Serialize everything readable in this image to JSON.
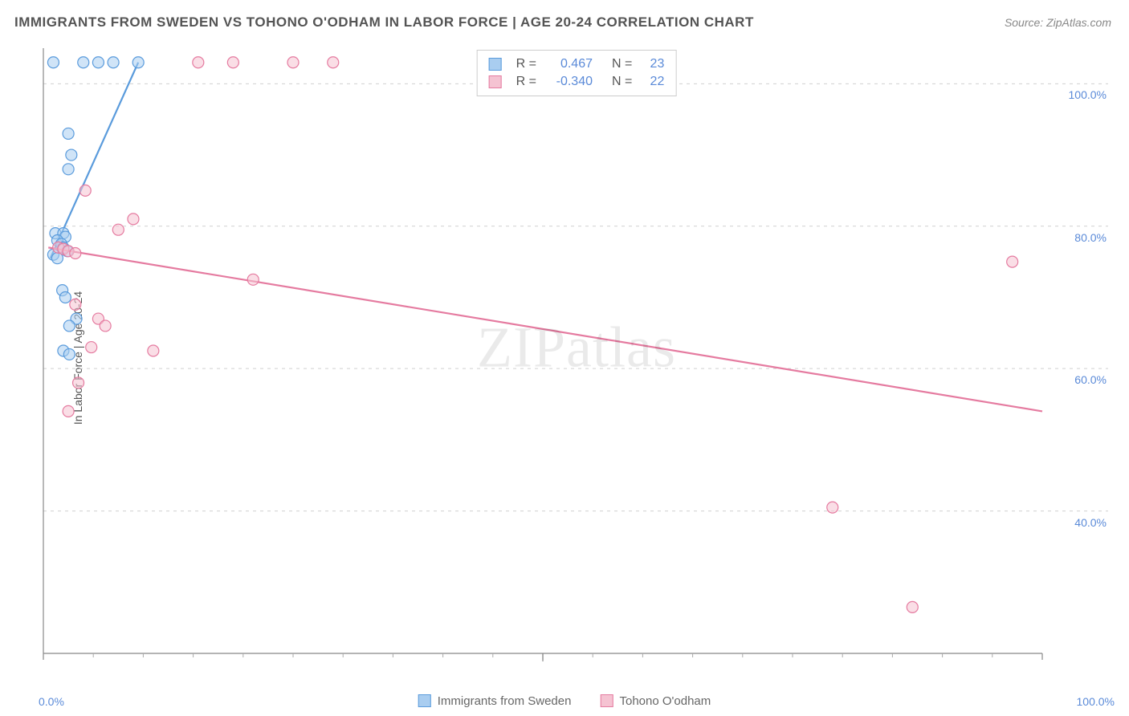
{
  "title": "IMMIGRANTS FROM SWEDEN VS TOHONO O'ODHAM IN LABOR FORCE | AGE 20-24 CORRELATION CHART",
  "source": "Source: ZipAtlas.com",
  "ylabel": "In Labor Force | Age 20-24",
  "watermark": "ZIPatlas",
  "chart": {
    "type": "scatter",
    "background_color": "#ffffff",
    "grid_color": "#d0d0d0",
    "axis_color": "#888888",
    "tick_color": "#aaaaaa",
    "label_color": "#5a8ad8",
    "xlim": [
      0,
      100
    ],
    "ylim": [
      20,
      105
    ],
    "x_ticks": [
      0,
      50,
      100
    ],
    "x_tick_labels": [
      "0.0%",
      "",
      "100.0%"
    ],
    "x_minor_ticks": [
      5,
      10,
      15,
      20,
      25,
      30,
      35,
      40,
      45,
      55,
      60,
      65,
      70,
      75,
      80,
      85,
      90,
      95
    ],
    "y_grid": [
      40,
      60,
      80,
      100
    ],
    "y_tick_labels": [
      "40.0%",
      "60.0%",
      "80.0%",
      "100.0%"
    ],
    "marker_radius": 7,
    "marker_stroke_width": 1.2,
    "line_width": 2.2,
    "series": [
      {
        "name": "Immigrants from Sweden",
        "color_fill": "#a9cdf0",
        "color_stroke": "#5a9bdc",
        "fill_opacity": 0.55,
        "points": [
          [
            1.0,
            103
          ],
          [
            4.0,
            103
          ],
          [
            5.5,
            103
          ],
          [
            7.0,
            103
          ],
          [
            9.5,
            103
          ],
          [
            2.5,
            93
          ],
          [
            2.8,
            90
          ],
          [
            2.5,
            88
          ],
          [
            1.2,
            79
          ],
          [
            2.0,
            79
          ],
          [
            2.2,
            78.5
          ],
          [
            1.4,
            78
          ],
          [
            1.8,
            77.5
          ],
          [
            2.0,
            77
          ],
          [
            2.4,
            76.5
          ],
          [
            1.0,
            76
          ],
          [
            1.4,
            75.5
          ],
          [
            1.9,
            71
          ],
          [
            2.2,
            70
          ],
          [
            3.3,
            67
          ],
          [
            2.6,
            66
          ],
          [
            2.0,
            62.5
          ],
          [
            2.6,
            62
          ]
        ],
        "trend": {
          "x1": 0.7,
          "y1": 75.5,
          "x2": 9.5,
          "y2": 103
        }
      },
      {
        "name": "Tohono O'odham",
        "color_fill": "#f5c3d2",
        "color_stroke": "#e57ba0",
        "fill_opacity": 0.55,
        "points": [
          [
            15.5,
            103
          ],
          [
            19,
            103
          ],
          [
            25,
            103
          ],
          [
            29,
            103
          ],
          [
            4.2,
            85
          ],
          [
            9.0,
            81
          ],
          [
            7.5,
            79.5
          ],
          [
            1.5,
            77
          ],
          [
            2.0,
            76.8
          ],
          [
            2.5,
            76.5
          ],
          [
            3.2,
            76.2
          ],
          [
            97,
            75
          ],
          [
            21,
            72.5
          ],
          [
            3.2,
            69
          ],
          [
            5.5,
            67
          ],
          [
            6.2,
            66
          ],
          [
            4.8,
            63
          ],
          [
            11,
            62.5
          ],
          [
            3.5,
            58
          ],
          [
            2.5,
            54
          ],
          [
            79,
            40.5
          ],
          [
            87,
            26.5
          ]
        ],
        "trend": {
          "x1": 0.5,
          "y1": 77,
          "x2": 100,
          "y2": 54
        }
      }
    ]
  },
  "stats": {
    "rows": [
      {
        "swatch_fill": "#a9cdf0",
        "swatch_stroke": "#5a9bdc",
        "r_label": "R =",
        "r": "0.467",
        "n_label": "N =",
        "n": "23"
      },
      {
        "swatch_fill": "#f5c3d2",
        "swatch_stroke": "#e57ba0",
        "r_label": "R =",
        "r": "-0.340",
        "n_label": "N =",
        "n": "22"
      }
    ]
  },
  "legend": [
    {
      "label": "Immigrants from Sweden",
      "fill": "#a9cdf0",
      "stroke": "#5a9bdc"
    },
    {
      "label": "Tohono O'odham",
      "fill": "#f5c3d2",
      "stroke": "#e57ba0"
    }
  ]
}
